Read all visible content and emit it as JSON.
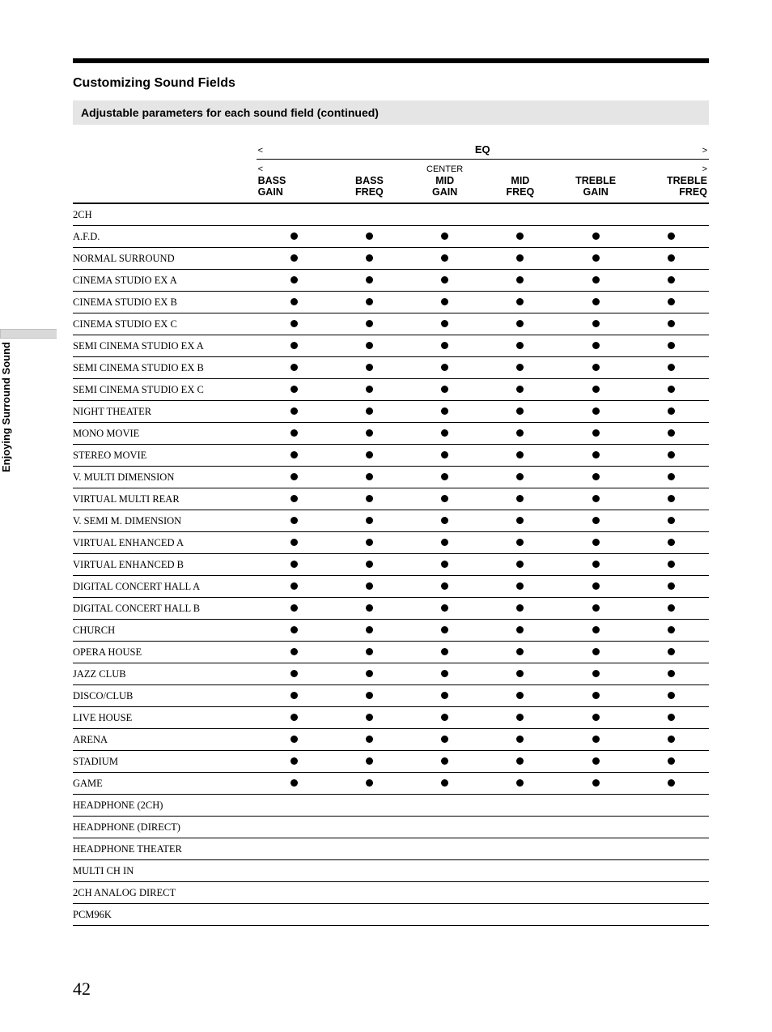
{
  "page": {
    "section_title": "Customizing Sound Fields",
    "subhead": "Adjustable parameters for each sound field (continued)",
    "sidebar_label": "Enjoying Surround Sound",
    "page_number": "42"
  },
  "table": {
    "group_left": "<",
    "group_center": "EQ",
    "group_right": ">",
    "columns": [
      {
        "line1": "<",
        "line2": "BASS",
        "line3": "GAIN"
      },
      {
        "line1": "",
        "line2": "BASS",
        "line3": "FREQ"
      },
      {
        "line1": "CENTER",
        "line2": "MID",
        "line3": "GAIN"
      },
      {
        "line1": "",
        "line2": "MID",
        "line3": "FREQ"
      },
      {
        "line1": "",
        "line2": "TREBLE",
        "line3": "GAIN"
      },
      {
        "line1": ">",
        "line2": "TREBLE",
        "line3": "FREQ"
      }
    ],
    "rows": [
      {
        "label": "2CH",
        "dots": [
          0,
          0,
          0,
          0,
          0,
          0
        ]
      },
      {
        "label": "A.F.D.",
        "dots": [
          1,
          1,
          1,
          1,
          1,
          1
        ]
      },
      {
        "label": "NORMAL SURROUND",
        "dots": [
          1,
          1,
          1,
          1,
          1,
          1
        ]
      },
      {
        "label": "CINEMA STUDIO EX A",
        "dots": [
          1,
          1,
          1,
          1,
          1,
          1
        ]
      },
      {
        "label": "CINEMA STUDIO EX B",
        "dots": [
          1,
          1,
          1,
          1,
          1,
          1
        ]
      },
      {
        "label": "CINEMA STUDIO EX C",
        "dots": [
          1,
          1,
          1,
          1,
          1,
          1
        ]
      },
      {
        "label": "SEMI CINEMA STUDIO EX A",
        "dots": [
          1,
          1,
          1,
          1,
          1,
          1
        ]
      },
      {
        "label": "SEMI CINEMA STUDIO EX B",
        "dots": [
          1,
          1,
          1,
          1,
          1,
          1
        ]
      },
      {
        "label": "SEMI CINEMA STUDIO EX C",
        "dots": [
          1,
          1,
          1,
          1,
          1,
          1
        ]
      },
      {
        "label": "NIGHT THEATER",
        "dots": [
          1,
          1,
          1,
          1,
          1,
          1
        ]
      },
      {
        "label": "MONO MOVIE",
        "dots": [
          1,
          1,
          1,
          1,
          1,
          1
        ]
      },
      {
        "label": "STEREO MOVIE",
        "dots": [
          1,
          1,
          1,
          1,
          1,
          1
        ]
      },
      {
        "label": "V. MULTI DIMENSION",
        "dots": [
          1,
          1,
          1,
          1,
          1,
          1
        ]
      },
      {
        "label": "VIRTUAL MULTI REAR",
        "dots": [
          1,
          1,
          1,
          1,
          1,
          1
        ]
      },
      {
        "label": "V. SEMI M. DIMENSION",
        "dots": [
          1,
          1,
          1,
          1,
          1,
          1
        ]
      },
      {
        "label": "VIRTUAL ENHANCED A",
        "dots": [
          1,
          1,
          1,
          1,
          1,
          1
        ]
      },
      {
        "label": "VIRTUAL ENHANCED B",
        "dots": [
          1,
          1,
          1,
          1,
          1,
          1
        ]
      },
      {
        "label": "DIGITAL CONCERT HALL A",
        "dots": [
          1,
          1,
          1,
          1,
          1,
          1
        ]
      },
      {
        "label": "DIGITAL CONCERT HALL B",
        "dots": [
          1,
          1,
          1,
          1,
          1,
          1
        ]
      },
      {
        "label": "CHURCH",
        "dots": [
          1,
          1,
          1,
          1,
          1,
          1
        ]
      },
      {
        "label": "OPERA HOUSE",
        "dots": [
          1,
          1,
          1,
          1,
          1,
          1
        ]
      },
      {
        "label": "JAZZ CLUB",
        "dots": [
          1,
          1,
          1,
          1,
          1,
          1
        ]
      },
      {
        "label": "DISCO/CLUB",
        "dots": [
          1,
          1,
          1,
          1,
          1,
          1
        ]
      },
      {
        "label": "LIVE HOUSE",
        "dots": [
          1,
          1,
          1,
          1,
          1,
          1
        ]
      },
      {
        "label": "ARENA",
        "dots": [
          1,
          1,
          1,
          1,
          1,
          1
        ]
      },
      {
        "label": "STADIUM",
        "dots": [
          1,
          1,
          1,
          1,
          1,
          1
        ]
      },
      {
        "label": "GAME",
        "dots": [
          1,
          1,
          1,
          1,
          1,
          1
        ]
      },
      {
        "label": "HEADPHONE (2CH)",
        "dots": [
          0,
          0,
          0,
          0,
          0,
          0
        ]
      },
      {
        "label": "HEADPHONE (DIRECT)",
        "dots": [
          0,
          0,
          0,
          0,
          0,
          0
        ]
      },
      {
        "label": "HEADPHONE THEATER",
        "dots": [
          0,
          0,
          0,
          0,
          0,
          0
        ]
      },
      {
        "label": "MULTI CH IN",
        "dots": [
          0,
          0,
          0,
          0,
          0,
          0
        ]
      },
      {
        "label": "2CH ANALOG DIRECT",
        "dots": [
          0,
          0,
          0,
          0,
          0,
          0
        ]
      },
      {
        "label": "PCM96K",
        "dots": [
          0,
          0,
          0,
          0,
          0,
          0
        ]
      }
    ]
  },
  "style": {
    "dot_color": "#000000",
    "rule_color": "#000000",
    "subhead_bg": "#e5e5e5"
  }
}
